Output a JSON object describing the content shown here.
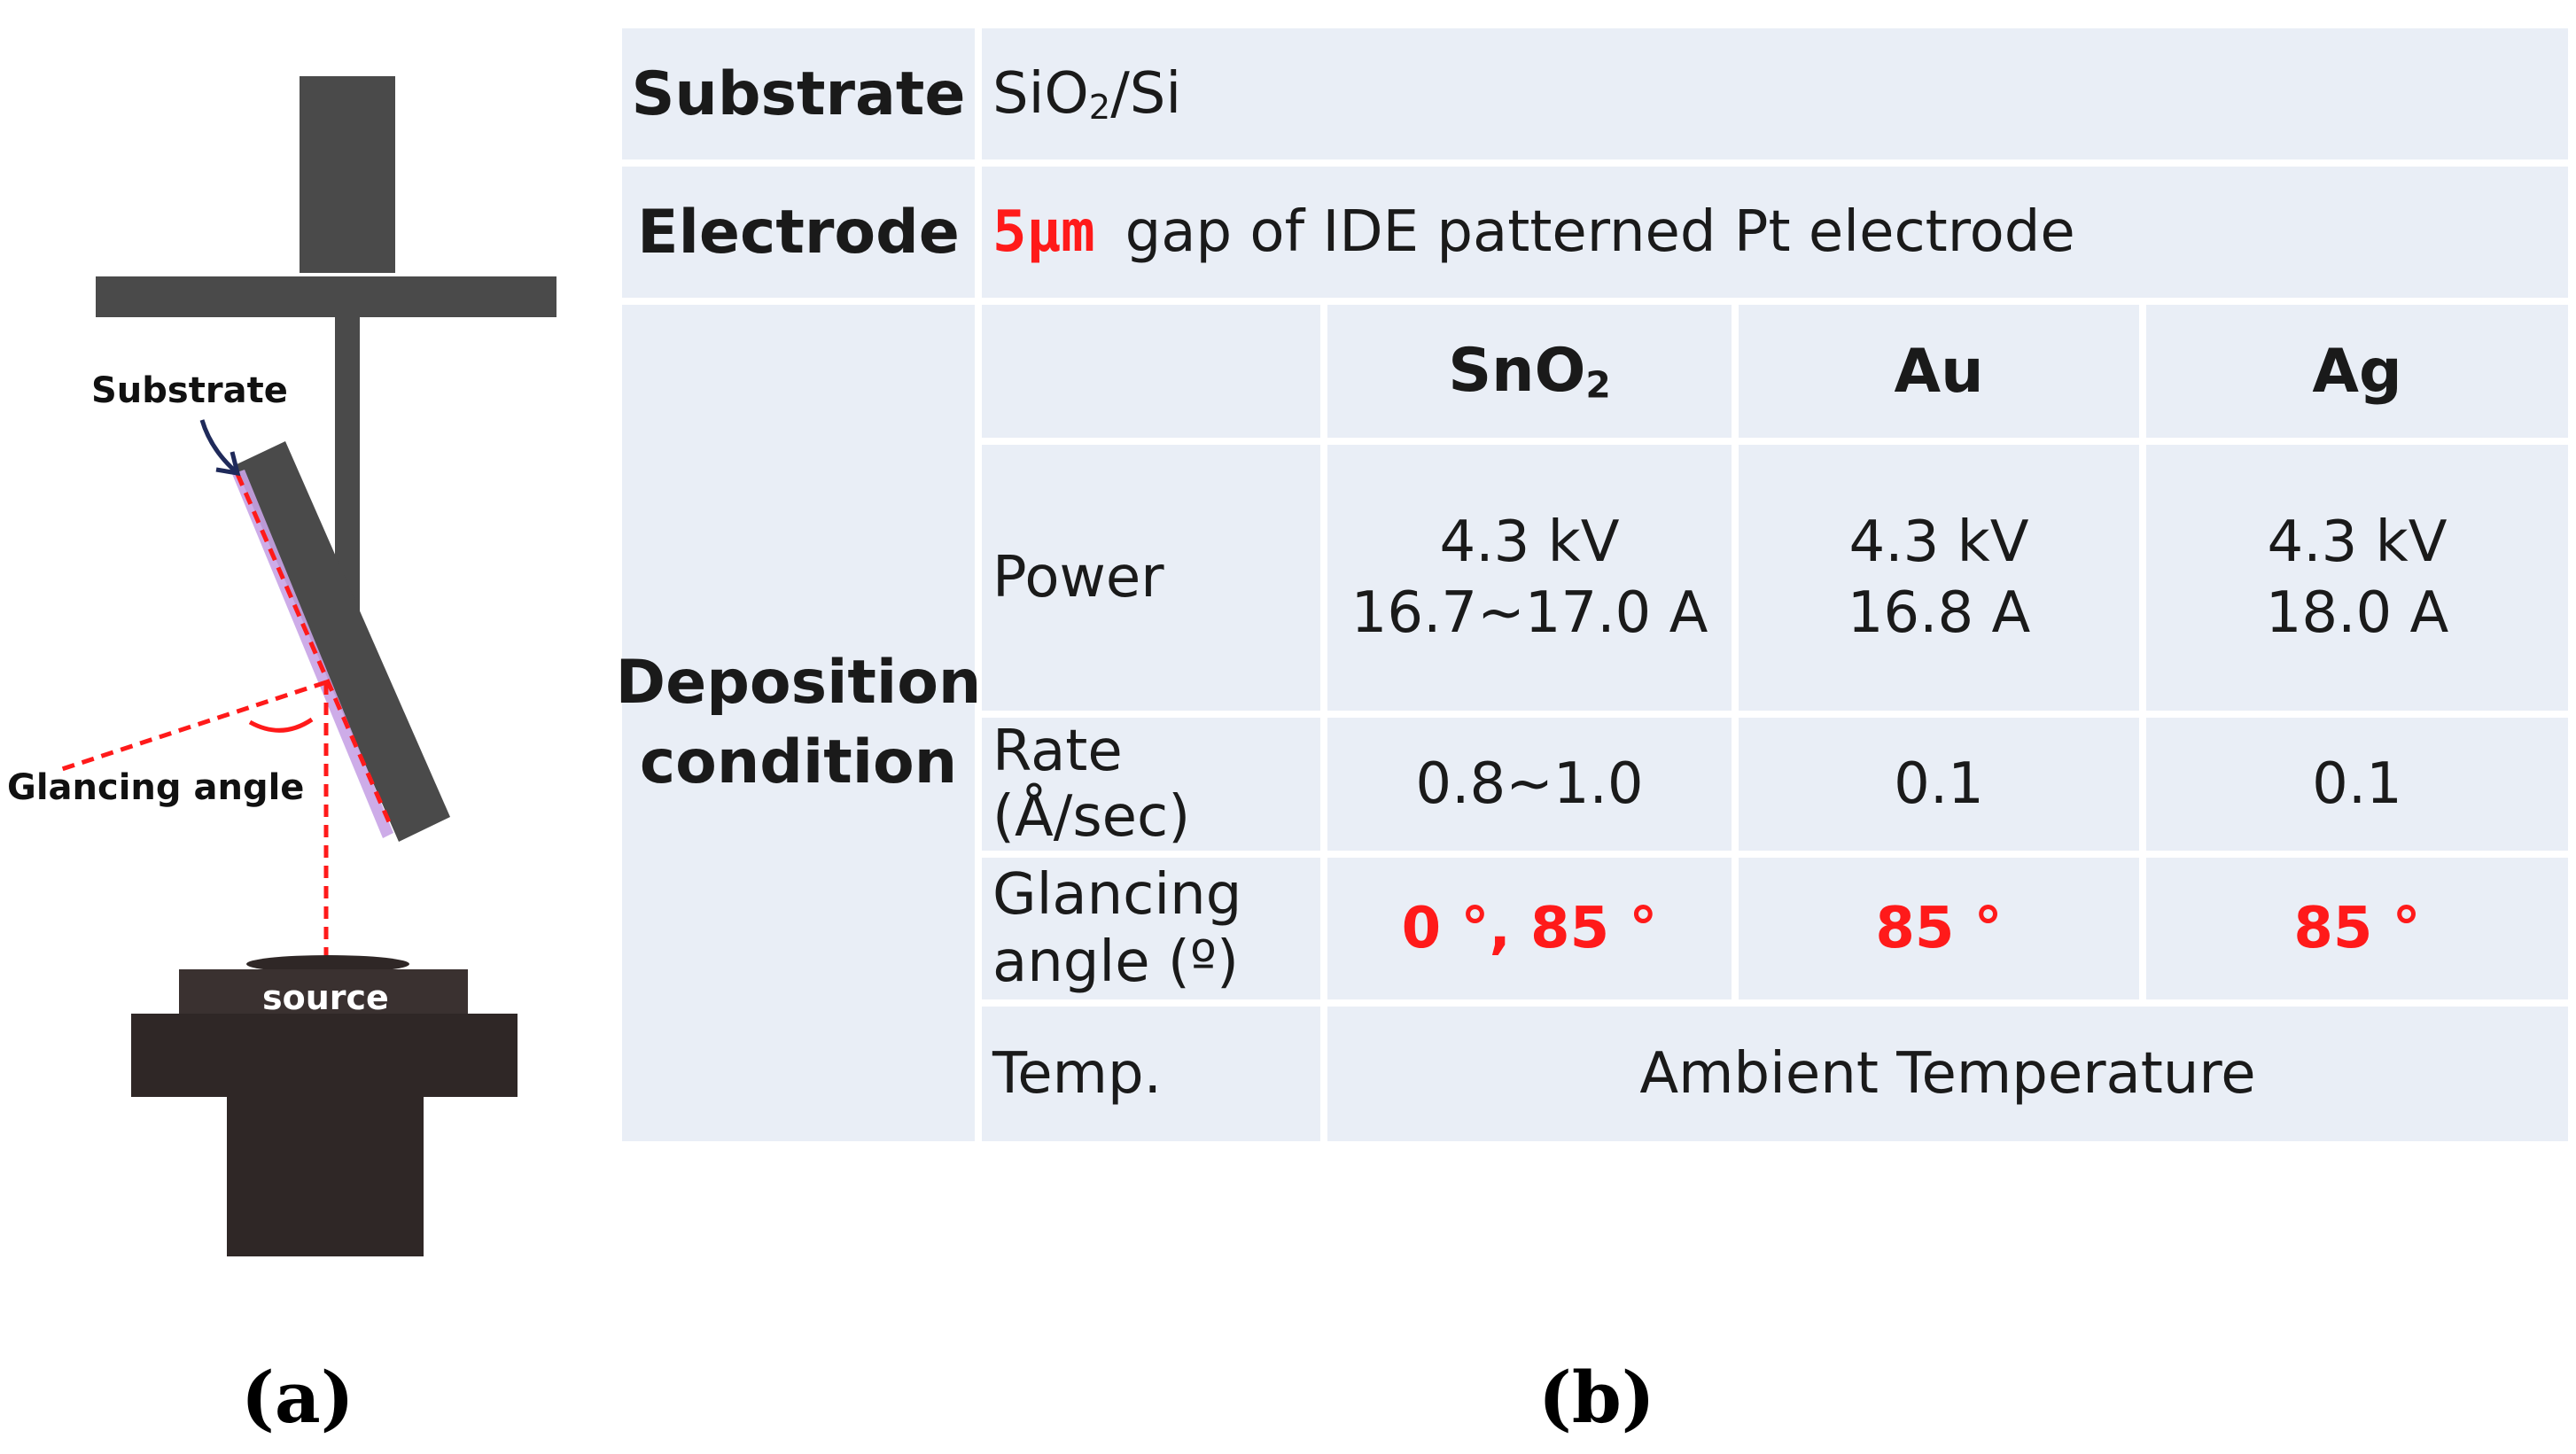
{
  "diagram": {
    "label_substrate": "Substrate",
    "label_glancing_angle": "Glancing angle",
    "label_source": "source",
    "colors": {
      "mount": "#4a4a4a",
      "base": "#2f2726",
      "guide_line": "#ff1a1a",
      "film": "#c8a3e6"
    }
  },
  "table": {
    "substrate_label": "Substrate",
    "substrate_value_prefix": "SiO",
    "substrate_value_sub": "2",
    "substrate_value_suffix": "/Si",
    "electrode_label": "Electrode",
    "electrode_gap": "5µm",
    "electrode_value": "gap of IDE patterned Pt electrode",
    "deposition_label_line1": "Deposition",
    "deposition_label_line2": "condition",
    "materials": [
      {
        "name": "SnO",
        "sub": "2"
      },
      {
        "name": "Au",
        "sub": ""
      },
      {
        "name": "Ag",
        "sub": ""
      }
    ],
    "power_label": "Power",
    "power": [
      {
        "voltage": "4.3 kV",
        "current": "16.7~17.0 A"
      },
      {
        "voltage": "4.3 kV",
        "current": "16.8 A"
      },
      {
        "voltage": "4.3 kV",
        "current": "18.0 A"
      }
    ],
    "rate_label": "Rate (Å/sec)",
    "rate": [
      "0.8~1.0",
      "0.1",
      "0.1"
    ],
    "glancing_label_line1": "Glancing",
    "glancing_label_line2": "angle (º)",
    "glancing": [
      "0 °, 85 °",
      "85 °",
      "85 °"
    ],
    "temp_label": "Temp.",
    "temp_value": "Ambient Temperature",
    "colors": {
      "cell_bg": "#e9eef6",
      "highlight": "#ff1a1a"
    }
  },
  "captions": {
    "a": "(a)",
    "b": "(b)"
  }
}
